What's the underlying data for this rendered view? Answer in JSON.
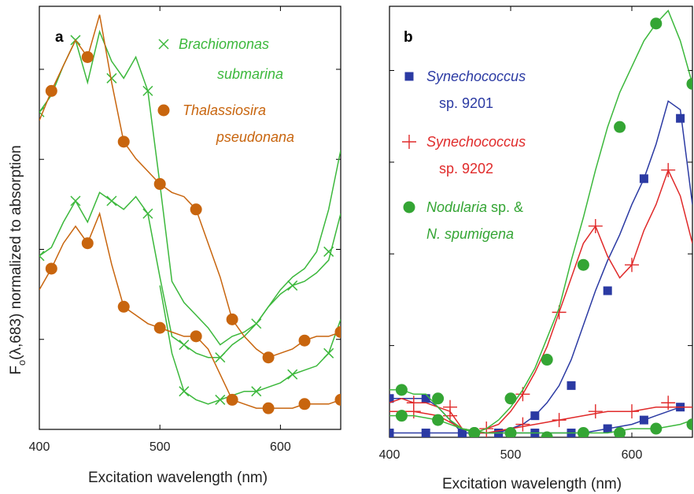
{
  "ylabel_main": "F",
  "ylabel_sub": "o",
  "ylabel_rest": "(λ,683) normalized to absorption",
  "colors": {
    "green": "#3cb83c",
    "orange": "#c8650e",
    "blue": "#2b3aa3",
    "red": "#e02a2a",
    "darkgreen": "#2e9a2e",
    "marker_green": "#34a534"
  },
  "chart_data": [
    {
      "type": "line",
      "panel": "a",
      "xlabel": "Excitation wavelength (nm)",
      "ylabel": "",
      "xlim": [
        400,
        650
      ],
      "ylim": [
        0,
        1
      ],
      "xticks": [
        400,
        500,
        600
      ],
      "yticks_count": 4,
      "legend": [
        {
          "marker": "×",
          "color": "green",
          "lines": [
            [
              "Brachiomonas",
              true
            ],
            [
              "submarina",
              true
            ]
          ]
        },
        {
          "marker": "●",
          "color": "orange",
          "lines": [
            [
              "Thalassiosira",
              true
            ],
            [
              "pseudonana",
              true
            ]
          ]
        }
      ],
      "series": [
        {
          "color": "green",
          "marker": "x",
          "line_x": [
            400,
            410,
            420,
            430,
            440,
            450,
            460,
            470,
            480,
            490,
            500,
            510,
            520,
            530,
            540,
            550,
            560,
            570,
            580,
            590,
            600,
            610,
            620,
            630,
            640,
            650
          ],
          "line_y": [
            0.75,
            0.79,
            0.86,
            0.92,
            0.82,
            0.94,
            0.87,
            0.83,
            0.88,
            0.8,
            0.58,
            0.35,
            0.3,
            0.27,
            0.24,
            0.2,
            0.22,
            0.23,
            0.25,
            0.29,
            0.33,
            0.36,
            0.38,
            0.42,
            0.52,
            0.66
          ],
          "marker_x": [
            400,
            430,
            460,
            490
          ],
          "marker_y": [
            0.75,
            0.92,
            0.83,
            0.8
          ]
        },
        {
          "color": "green",
          "marker": "x",
          "line_x": [
            400,
            410,
            420,
            430,
            440,
            450,
            460,
            470,
            480,
            490,
            500,
            510,
            520,
            530,
            540,
            550,
            560,
            570,
            580,
            590,
            600,
            610,
            620,
            630,
            640,
            650
          ],
          "line_y": [
            0.41,
            0.43,
            0.49,
            0.54,
            0.49,
            0.56,
            0.54,
            0.52,
            0.55,
            0.51,
            0.36,
            0.22,
            0.2,
            0.18,
            0.17,
            0.17,
            0.2,
            0.22,
            0.25,
            0.29,
            0.32,
            0.34,
            0.35,
            0.37,
            0.4,
            0.51
          ],
          "marker_x": [
            400,
            430,
            460,
            490,
            520,
            550,
            580,
            610,
            640
          ],
          "marker_y": [
            0.41,
            0.54,
            0.54,
            0.51,
            0.2,
            0.17,
            0.25,
            0.34,
            0.42
          ]
        },
        {
          "color": "green",
          "marker": "x",
          "line_x": [
            500,
            510,
            520,
            530,
            540,
            550,
            560,
            570,
            580,
            590,
            600,
            610,
            620,
            630,
            640,
            650
          ],
          "line_y": [
            0.34,
            0.18,
            0.09,
            0.07,
            0.06,
            0.07,
            0.08,
            0.09,
            0.09,
            0.1,
            0.11,
            0.13,
            0.14,
            0.15,
            0.18,
            0.26
          ],
          "marker_x": [
            520,
            550,
            580,
            610,
            640
          ],
          "marker_y": [
            0.09,
            0.07,
            0.09,
            0.13,
            0.18
          ]
        },
        {
          "color": "orange",
          "marker": "o",
          "line_x": [
            400,
            410,
            420,
            430,
            440,
            450,
            460,
            470,
            480,
            490,
            500,
            510,
            520,
            530,
            540,
            550,
            560,
            570,
            580,
            590,
            600,
            610,
            620,
            630,
            640,
            650
          ],
          "line_y": [
            0.73,
            0.8,
            0.86,
            0.92,
            0.88,
            0.98,
            0.82,
            0.68,
            0.64,
            0.61,
            0.58,
            0.56,
            0.55,
            0.52,
            0.44,
            0.36,
            0.26,
            0.22,
            0.19,
            0.17,
            0.18,
            0.19,
            0.21,
            0.22,
            0.22,
            0.23
          ],
          "marker_x": [
            410,
            440,
            470,
            500,
            530,
            560,
            590,
            620,
            650
          ],
          "marker_y": [
            0.8,
            0.88,
            0.68,
            0.58,
            0.52,
            0.26,
            0.17,
            0.21,
            0.23
          ]
        },
        {
          "color": "orange",
          "marker": "o",
          "line_x": [
            400,
            410,
            420,
            430,
            440,
            450,
            460,
            470,
            480,
            490,
            500,
            510,
            520,
            530,
            540,
            550,
            560,
            570,
            580,
            590,
            600,
            610,
            620,
            630,
            640,
            650
          ],
          "line_y": [
            0.33,
            0.38,
            0.44,
            0.48,
            0.44,
            0.51,
            0.39,
            0.29,
            0.27,
            0.25,
            0.24,
            0.23,
            0.22,
            0.22,
            0.19,
            0.13,
            0.07,
            0.06,
            0.05,
            0.05,
            0.05,
            0.05,
            0.06,
            0.06,
            0.06,
            0.07
          ],
          "marker_x": [
            410,
            440,
            470,
            500,
            530,
            560,
            590,
            620,
            650
          ],
          "marker_y": [
            0.38,
            0.44,
            0.29,
            0.24,
            0.22,
            0.07,
            0.05,
            0.06,
            0.07
          ]
        }
      ]
    },
    {
      "type": "line",
      "panel": "b",
      "xlabel": "Excitation wavelength (nm)",
      "ylabel": "",
      "xlim": [
        400,
        650
      ],
      "ylim": [
        0,
        1
      ],
      "xticks": [
        400,
        500,
        600
      ],
      "yticks_count": 4,
      "legend": [
        {
          "marker": "■",
          "color": "blue",
          "lines": [
            [
              "Synechococcus",
              true
            ],
            [
              "sp. 9201",
              false
            ]
          ]
        },
        {
          "marker": "+",
          "color": "red",
          "lines": [
            [
              "Synechococcus",
              true
            ],
            [
              "sp. 9202",
              false
            ]
          ]
        },
        {
          "marker": "●",
          "color": "marker_green",
          "lines": [
            [
              "Nodularia",
              true,
              " sp. &"
            ],
            [
              "N. spumigena",
              true
            ]
          ]
        }
      ],
      "series": [
        {
          "color": "blue",
          "marker": "s",
          "line_x": [
            400,
            410,
            420,
            430,
            440,
            450,
            460,
            470,
            480,
            490,
            500,
            510,
            520,
            530,
            540,
            550,
            560,
            570,
            580,
            590,
            600,
            610,
            620,
            630,
            640,
            650
          ],
          "line_y": [
            0.09,
            0.09,
            0.09,
            0.09,
            0.07,
            0.04,
            0.01,
            0.01,
            0.01,
            0.01,
            0.02,
            0.03,
            0.05,
            0.08,
            0.12,
            0.18,
            0.26,
            0.34,
            0.41,
            0.47,
            0.54,
            0.6,
            0.68,
            0.78,
            0.76,
            0.54
          ],
          "marker_x": [
            400,
            430,
            460,
            490,
            520,
            550,
            580,
            610,
            640
          ],
          "marker_y": [
            0.09,
            0.09,
            0.01,
            0.01,
            0.05,
            0.12,
            0.34,
            0.6,
            0.74
          ]
        },
        {
          "color": "blue",
          "marker": "s",
          "line_x": [
            400,
            420,
            440,
            460,
            480,
            500,
            520,
            540,
            560,
            580,
            600,
            620,
            640,
            650
          ],
          "line_y": [
            0.01,
            0.01,
            0.01,
            0.01,
            0.01,
            0.01,
            0.01,
            0.01,
            0.01,
            0.02,
            0.03,
            0.05,
            0.07,
            0.07
          ],
          "marker_x": [
            400,
            430,
            460,
            490,
            520,
            550,
            580,
            610,
            640
          ],
          "marker_y": [
            0.01,
            0.01,
            0.01,
            0.01,
            0.01,
            0.01,
            0.02,
            0.04,
            0.07
          ]
        },
        {
          "color": "red",
          "marker": "+",
          "line_x": [
            400,
            410,
            420,
            430,
            440,
            450,
            460,
            470,
            480,
            490,
            500,
            510,
            520,
            530,
            540,
            550,
            560,
            570,
            580,
            590,
            600,
            610,
            620,
            630,
            640,
            650
          ],
          "line_y": [
            0.08,
            0.09,
            0.08,
            0.08,
            0.07,
            0.06,
            0.02,
            0.01,
            0.02,
            0.03,
            0.06,
            0.1,
            0.15,
            0.21,
            0.29,
            0.37,
            0.45,
            0.49,
            0.42,
            0.37,
            0.4,
            0.48,
            0.54,
            0.62,
            0.56,
            0.45
          ],
          "marker_x": [
            420,
            450,
            480,
            510,
            540,
            570,
            600,
            630
          ],
          "marker_y": [
            0.08,
            0.07,
            0.02,
            0.1,
            0.29,
            0.49,
            0.4,
            0.62
          ]
        },
        {
          "color": "red",
          "marker": "+",
          "line_x": [
            400,
            420,
            440,
            460,
            480,
            500,
            520,
            540,
            560,
            580,
            600,
            620,
            640,
            650
          ],
          "line_y": [
            0.06,
            0.06,
            0.05,
            0.02,
            0.01,
            0.02,
            0.03,
            0.04,
            0.05,
            0.06,
            0.06,
            0.07,
            0.07,
            0.07
          ],
          "marker_x": [
            420,
            450,
            480,
            510,
            540,
            570,
            600,
            630
          ],
          "marker_y": [
            0.06,
            0.05,
            0.01,
            0.03,
            0.04,
            0.06,
            0.06,
            0.08
          ]
        },
        {
          "color": "green",
          "marker": "o",
          "line_x": [
            400,
            410,
            420,
            430,
            440,
            450,
            460,
            470,
            480,
            490,
            500,
            510,
            520,
            530,
            540,
            550,
            560,
            570,
            580,
            590,
            600,
            610,
            620,
            630,
            640,
            650
          ],
          "line_y": [
            0.11,
            0.11,
            0.1,
            0.1,
            0.07,
            0.04,
            0.02,
            0.01,
            0.02,
            0.04,
            0.07,
            0.11,
            0.16,
            0.23,
            0.3,
            0.41,
            0.51,
            0.62,
            0.72,
            0.8,
            0.86,
            0.92,
            0.96,
            0.99,
            0.92,
            0.82
          ],
          "marker_x": [
            410,
            440,
            470,
            500,
            530,
            560,
            590,
            620,
            650
          ],
          "marker_y": [
            0.11,
            0.09,
            0.01,
            0.09,
            0.18,
            0.4,
            0.72,
            0.96,
            0.82
          ]
        },
        {
          "color": "green",
          "marker": "o",
          "line_x": [
            400,
            420,
            440,
            460,
            480,
            500,
            520,
            540,
            560,
            580,
            600,
            620,
            640,
            650
          ],
          "line_y": [
            0.05,
            0.05,
            0.04,
            0.02,
            0.01,
            0.01,
            0.01,
            0.01,
            0.01,
            0.01,
            0.02,
            0.02,
            0.03,
            0.04
          ],
          "marker_x": [
            410,
            440,
            470,
            500,
            530,
            560,
            590,
            620,
            650
          ],
          "marker_y": [
            0.05,
            0.04,
            0.01,
            0.01,
            0.0,
            0.01,
            0.01,
            0.02,
            0.03
          ]
        }
      ]
    }
  ]
}
